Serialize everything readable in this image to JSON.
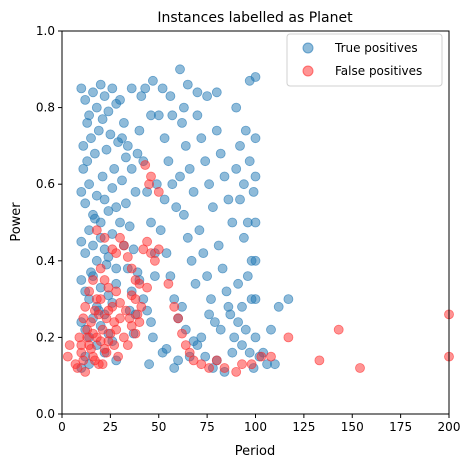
{
  "chart_data": {
    "type": "scatter",
    "title": "Instances labelled as Planet",
    "xlabel": "Period",
    "ylabel": "Power",
    "xlim": [
      0,
      200
    ],
    "ylim": [
      0,
      1.0
    ],
    "xticks": [
      "0",
      "25",
      "50",
      "75",
      "100",
      "125",
      "150",
      "175",
      "200"
    ],
    "yticks": [
      "0.0",
      "0.2",
      "0.4",
      "0.6",
      "0.8",
      "1.0"
    ],
    "grid": false,
    "legend_position": "top-right",
    "series": [
      {
        "name": "True positives",
        "color": "#1f77b4",
        "points": [
          [
            10,
            0.85
          ],
          [
            12,
            0.82
          ],
          [
            14,
            0.78
          ],
          [
            16,
            0.84
          ],
          [
            18,
            0.8
          ],
          [
            20,
            0.86
          ],
          [
            22,
            0.83
          ],
          [
            24,
            0.79
          ],
          [
            26,
            0.85
          ],
          [
            28,
            0.81
          ],
          [
            11,
            0.7
          ],
          [
            13,
            0.66
          ],
          [
            15,
            0.72
          ],
          [
            17,
            0.68
          ],
          [
            19,
            0.74
          ],
          [
            21,
            0.62
          ],
          [
            23,
            0.69
          ],
          [
            25,
            0.73
          ],
          [
            27,
            0.64
          ],
          [
            29,
            0.71
          ],
          [
            10,
            0.58
          ],
          [
            12,
            0.55
          ],
          [
            14,
            0.6
          ],
          [
            16,
            0.52
          ],
          [
            18,
            0.57
          ],
          [
            20,
            0.5
          ],
          [
            22,
            0.56
          ],
          [
            24,
            0.53
          ],
          [
            26,
            0.59
          ],
          [
            28,
            0.54
          ],
          [
            10,
            0.45
          ],
          [
            12,
            0.42
          ],
          [
            14,
            0.48
          ],
          [
            16,
            0.44
          ],
          [
            18,
            0.4
          ],
          [
            20,
            0.46
          ],
          [
            22,
            0.43
          ],
          [
            24,
            0.41
          ],
          [
            26,
            0.47
          ],
          [
            28,
            0.38
          ],
          [
            10,
            0.35
          ],
          [
            12,
            0.32
          ],
          [
            14,
            0.3
          ],
          [
            16,
            0.36
          ],
          [
            18,
            0.28
          ],
          [
            20,
            0.33
          ],
          [
            22,
            0.26
          ],
          [
            24,
            0.31
          ],
          [
            26,
            0.29
          ],
          [
            28,
            0.34
          ],
          [
            10,
            0.24
          ],
          [
            12,
            0.22
          ],
          [
            14,
            0.2
          ],
          [
            16,
            0.25
          ],
          [
            18,
            0.18
          ],
          [
            20,
            0.23
          ],
          [
            22,
            0.16
          ],
          [
            24,
            0.21
          ],
          [
            26,
            0.19
          ],
          [
            28,
            0.14
          ],
          [
            10,
            0.12
          ],
          [
            12,
            0.15
          ],
          [
            14,
            0.13
          ],
          [
            11,
            0.64
          ],
          [
            13,
            0.76
          ],
          [
            15,
            0.37
          ],
          [
            17,
            0.51
          ],
          [
            19,
            0.27
          ],
          [
            21,
            0.77
          ],
          [
            23,
            0.39
          ],
          [
            30,
            0.82
          ],
          [
            32,
            0.76
          ],
          [
            34,
            0.7
          ],
          [
            36,
            0.64
          ],
          [
            38,
            0.58
          ],
          [
            30,
            0.5
          ],
          [
            32,
            0.44
          ],
          [
            34,
            0.38
          ],
          [
            36,
            0.32
          ],
          [
            38,
            0.26
          ],
          [
            31,
            0.61
          ],
          [
            33,
            0.55
          ],
          [
            35,
            0.49
          ],
          [
            37,
            0.43
          ],
          [
            39,
            0.37
          ],
          [
            31,
            0.72
          ],
          [
            33,
            0.67
          ],
          [
            35,
            0.27
          ],
          [
            37,
            0.21
          ],
          [
            39,
            0.68
          ],
          [
            40,
            0.74
          ],
          [
            42,
            0.66
          ],
          [
            44,
            0.58
          ],
          [
            46,
            0.5
          ],
          [
            48,
            0.42
          ],
          [
            40,
            0.35
          ],
          [
            42,
            0.3
          ],
          [
            44,
            0.27
          ],
          [
            46,
            0.24
          ],
          [
            48,
            0.36
          ],
          [
            36,
            0.85
          ],
          [
            41,
            0.83
          ],
          [
            47,
            0.87
          ],
          [
            52,
            0.85
          ],
          [
            56,
            0.83
          ],
          [
            61,
            0.9
          ],
          [
            65,
            0.86
          ],
          [
            70,
            0.84
          ],
          [
            75,
            0.83
          ],
          [
            80,
            0.84
          ],
          [
            50,
            0.78
          ],
          [
            53,
            0.72
          ],
          [
            55,
            0.66
          ],
          [
            57,
            0.6
          ],
          [
            59,
            0.54
          ],
          [
            51,
            0.48
          ],
          [
            54,
            0.42
          ],
          [
            56,
            0.36
          ],
          [
            58,
            0.3
          ],
          [
            60,
            0.25
          ],
          [
            62,
            0.76
          ],
          [
            64,
            0.7
          ],
          [
            66,
            0.64
          ],
          [
            68,
            0.58
          ],
          [
            63,
            0.52
          ],
          [
            65,
            0.46
          ],
          [
            67,
            0.4
          ],
          [
            69,
            0.34
          ],
          [
            62,
            0.28
          ],
          [
            64,
            0.22
          ],
          [
            70,
            0.78
          ],
          [
            72,
            0.72
          ],
          [
            74,
            0.66
          ],
          [
            76,
            0.6
          ],
          [
            78,
            0.54
          ],
          [
            71,
            0.48
          ],
          [
            73,
            0.42
          ],
          [
            75,
            0.36
          ],
          [
            77,
            0.3
          ],
          [
            79,
            0.24
          ],
          [
            70,
            0.18
          ],
          [
            74,
            0.15
          ],
          [
            78,
            0.12
          ],
          [
            72,
            0.2
          ],
          [
            76,
            0.26
          ],
          [
            80,
            0.74
          ],
          [
            82,
            0.68
          ],
          [
            84,
            0.62
          ],
          [
            86,
            0.56
          ],
          [
            88,
            0.5
          ],
          [
            81,
            0.44
          ],
          [
            83,
            0.38
          ],
          [
            85,
            0.32
          ],
          [
            87,
            0.26
          ],
          [
            89,
            0.2
          ],
          [
            80,
            0.14
          ],
          [
            84,
            0.11
          ],
          [
            88,
            0.16
          ],
          [
            82,
            0.22
          ],
          [
            86,
            0.28
          ],
          [
            90,
            0.8
          ],
          [
            92,
            0.7
          ],
          [
            94,
            0.6
          ],
          [
            96,
            0.5
          ],
          [
            98,
            0.4
          ],
          [
            91,
            0.34
          ],
          [
            93,
            0.28
          ],
          [
            95,
            0.22
          ],
          [
            97,
            0.16
          ],
          [
            99,
            0.12
          ],
          [
            90,
            0.64
          ],
          [
            92,
            0.56
          ],
          [
            94,
            0.46
          ],
          [
            96,
            0.36
          ],
          [
            98,
            0.3
          ],
          [
            91,
            0.24
          ],
          [
            93,
            0.18
          ],
          [
            95,
            0.74
          ],
          [
            97,
            0.66
          ],
          [
            99,
            0.58
          ],
          [
            100,
            0.88
          ],
          [
            97,
            0.87
          ],
          [
            100,
            0.72
          ],
          [
            100,
            0.62
          ],
          [
            100,
            0.5
          ],
          [
            100,
            0.4
          ],
          [
            100,
            0.3
          ],
          [
            100,
            0.2
          ],
          [
            102,
            0.15
          ],
          [
            106,
            0.13
          ],
          [
            108,
            0.22
          ],
          [
            112,
            0.28
          ],
          [
            117,
            0.3
          ],
          [
            104,
            0.16
          ],
          [
            110,
            0.13
          ],
          [
            60,
            0.14
          ],
          [
            66,
            0.15
          ],
          [
            68,
            0.19
          ],
          [
            58,
            0.12
          ],
          [
            54,
            0.17
          ],
          [
            45,
            0.13
          ],
          [
            47,
            0.2
          ],
          [
            52,
            0.16
          ],
          [
            43,
            0.85
          ],
          [
            46,
            0.78
          ],
          [
            49,
            0.6
          ],
          [
            53,
            0.56
          ],
          [
            57,
            0.78
          ],
          [
            61,
            0.62
          ],
          [
            63,
            0.8
          ]
        ]
      },
      {
        "name": "False positives",
        "color": "#ff2a2a",
        "points": [
          [
            3,
            0.15
          ],
          [
            4,
            0.18
          ],
          [
            7,
            0.13
          ],
          [
            8,
            0.12
          ],
          [
            9,
            0.2
          ],
          [
            10,
            0.16
          ],
          [
            11,
            0.14
          ],
          [
            12,
            0.11
          ],
          [
            13,
            0.22
          ],
          [
            14,
            0.18
          ],
          [
            15,
            0.24
          ],
          [
            16,
            0.15
          ],
          [
            17,
            0.27
          ],
          [
            18,
            0.2
          ],
          [
            19,
            0.13
          ],
          [
            20,
            0.3
          ],
          [
            21,
            0.22
          ],
          [
            22,
            0.17
          ],
          [
            23,
            0.25
          ],
          [
            24,
            0.19
          ],
          [
            12,
            0.28
          ],
          [
            14,
            0.32
          ],
          [
            16,
            0.35
          ],
          [
            18,
            0.3
          ],
          [
            20,
            0.38
          ],
          [
            22,
            0.35
          ],
          [
            24,
            0.33
          ],
          [
            26,
            0.28
          ],
          [
            28,
            0.22
          ],
          [
            30,
            0.25
          ],
          [
            32,
            0.2
          ],
          [
            34,
            0.18
          ],
          [
            36,
            0.23
          ],
          [
            38,
            0.21
          ],
          [
            40,
            0.24
          ],
          [
            11,
            0.25
          ],
          [
            13,
            0.2
          ],
          [
            15,
            0.17
          ],
          [
            17,
            0.14
          ],
          [
            19,
            0.26
          ],
          [
            21,
            0.13
          ],
          [
            23,
            0.16
          ],
          [
            25,
            0.21
          ],
          [
            27,
            0.18
          ],
          [
            29,
            0.15
          ],
          [
            18,
            0.48
          ],
          [
            22,
            0.46
          ],
          [
            26,
            0.43
          ],
          [
            28,
            0.42
          ],
          [
            30,
            0.46
          ],
          [
            32,
            0.44
          ],
          [
            34,
            0.41
          ],
          [
            36,
            0.38
          ],
          [
            38,
            0.35
          ],
          [
            40,
            0.34
          ],
          [
            42,
            0.43
          ],
          [
            44,
            0.45
          ],
          [
            46,
            0.42
          ],
          [
            48,
            0.4
          ],
          [
            50,
            0.43
          ],
          [
            36,
            0.31
          ],
          [
            41,
            0.28
          ],
          [
            44,
            0.33
          ],
          [
            38,
            0.3
          ],
          [
            43,
            0.65
          ],
          [
            46,
            0.62
          ],
          [
            50,
            0.58
          ],
          [
            45,
            0.6
          ],
          [
            55,
            0.34
          ],
          [
            58,
            0.28
          ],
          [
            60,
            0.25
          ],
          [
            62,
            0.21
          ],
          [
            66,
            0.16
          ],
          [
            64,
            0.18
          ],
          [
            68,
            0.14
          ],
          [
            72,
            0.13
          ],
          [
            76,
            0.12
          ],
          [
            80,
            0.14
          ],
          [
            84,
            0.12
          ],
          [
            90,
            0.11
          ],
          [
            93,
            0.13
          ],
          [
            98,
            0.13
          ],
          [
            103,
            0.15
          ],
          [
            108,
            0.15
          ],
          [
            117,
            0.2
          ],
          [
            133,
            0.14
          ],
          [
            143,
            0.22
          ],
          [
            154,
            0.12
          ],
          [
            200,
            0.26
          ],
          [
            200,
            0.15
          ],
          [
            10,
            0.18
          ],
          [
            16,
            0.21
          ],
          [
            20,
            0.19
          ],
          [
            24,
            0.27
          ],
          [
            27,
            0.24
          ],
          [
            30,
            0.29
          ],
          [
            33,
            0.27
          ],
          [
            35,
            0.25
          ],
          [
            39,
            0.26
          ],
          [
            28,
            0.32
          ]
        ]
      }
    ]
  }
}
